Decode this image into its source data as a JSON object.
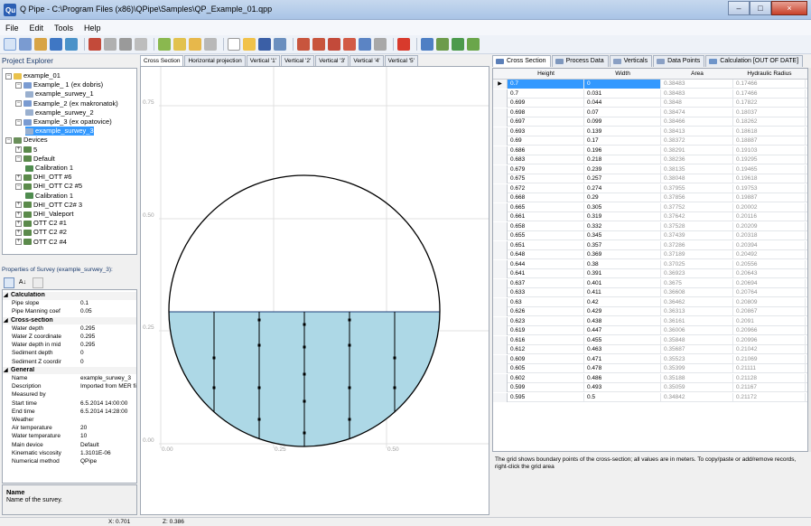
{
  "window": {
    "title": "Q Pipe - C:\\Program Files (x86)\\QPipe\\Samples\\QP_Example_01.qpp",
    "buttons": [
      "–",
      "□",
      "×"
    ]
  },
  "menu": [
    "File",
    "Edit",
    "Tools",
    "Help"
  ],
  "project_explorer": {
    "header": "Project Explorer",
    "items": [
      {
        "label": "example_01",
        "level": 0,
        "exp": "−",
        "icon": "folder-icon"
      },
      {
        "label": "Example_ 1 (ex dobris)",
        "level": 1,
        "exp": "−",
        "icon": "pipe-icon"
      },
      {
        "label": "example_surwey_1",
        "level": 2,
        "exp": "",
        "icon": "survey-icon"
      },
      {
        "label": "Example_2 (ex makronatok)",
        "level": 1,
        "exp": "−",
        "icon": "pipe-icon"
      },
      {
        "label": "example_surwey_2",
        "level": 2,
        "exp": "",
        "icon": "survey-icon"
      },
      {
        "label": "Example_3 (ex opatovice)",
        "level": 1,
        "exp": "−",
        "icon": "pipe-icon"
      },
      {
        "label": "example_surwey_3",
        "level": 2,
        "exp": "",
        "icon": "survey-icon",
        "selected": true
      },
      {
        "label": "Devices",
        "level": 0,
        "exp": "−",
        "icon": "devices-icon"
      },
      {
        "label": "5",
        "level": 1,
        "exp": "+",
        "icon": "device-icon"
      },
      {
        "label": "Default",
        "level": 1,
        "exp": "−",
        "icon": "device-icon"
      },
      {
        "label": "Calibration 1",
        "level": 2,
        "exp": "",
        "icon": "calibration-icon"
      },
      {
        "label": "DHI_OTT #6",
        "level": 1,
        "exp": "+",
        "icon": "device-icon"
      },
      {
        "label": "DHI_OTT C2 #5",
        "level": 1,
        "exp": "−",
        "icon": "device-icon"
      },
      {
        "label": "Calibration 1",
        "level": 2,
        "exp": "",
        "icon": "calibration-icon"
      },
      {
        "label": "DHI_OTT C2# 3",
        "level": 1,
        "exp": "+",
        "icon": "device-icon"
      },
      {
        "label": "DHI_Valeport",
        "level": 1,
        "exp": "+",
        "icon": "device-icon"
      },
      {
        "label": "OTT C2 #1",
        "level": 1,
        "exp": "+",
        "icon": "device-icon"
      },
      {
        "label": "OTT C2 #2",
        "level": 1,
        "exp": "+",
        "icon": "device-icon"
      },
      {
        "label": "OTT C2 #4",
        "level": 1,
        "exp": "+",
        "icon": "device-icon"
      }
    ]
  },
  "properties": {
    "header": "Properties of Survey (example_surwey_3):",
    "rows": [
      {
        "cat": true,
        "key": "Calculation"
      },
      {
        "key": "Pipe slope",
        "value": "0.1"
      },
      {
        "key": "Pipe Manning coef",
        "value": "0.05"
      },
      {
        "cat": true,
        "key": "Cross-section"
      },
      {
        "key": "Water depth",
        "value": "0.295"
      },
      {
        "key": "Water Z coordinate",
        "value": "0.295"
      },
      {
        "key": "Water depth in mid",
        "value": "0.295"
      },
      {
        "key": "Sediment depth",
        "value": "0"
      },
      {
        "key": "Sediment Z coordir",
        "value": "0"
      },
      {
        "cat": true,
        "key": "General"
      },
      {
        "key": "Name",
        "value": "example_surwey_3"
      },
      {
        "key": "Description",
        "value": "Imported from MER file"
      },
      {
        "key": "Measured by",
        "value": ""
      },
      {
        "key": "Start time",
        "value": "6.5.2014 14:00:00"
      },
      {
        "key": "End time",
        "value": "6.5.2014 14:28:00"
      },
      {
        "key": "Weather",
        "value": ""
      },
      {
        "key": "Air temperature",
        "value": "20"
      },
      {
        "key": "Water temperature",
        "value": "10"
      },
      {
        "key": "Main device",
        "value": "Default"
      },
      {
        "key": "Kinematic viscosity",
        "value": "1.3101E-06"
      },
      {
        "key": "Numerical method",
        "value": "QPipe"
      }
    ],
    "desc_title": "Name",
    "desc_text": "Name of the survey."
  },
  "center_tabs": [
    "Cross Section",
    "Horizontal projection",
    "Vertical '1'",
    "Vertical '2'",
    "Vertical '3'",
    "Vertical '4'",
    "Vertical '5'"
  ],
  "chart": {
    "y_ticks": [
      "0.75",
      "0.50",
      "0.25",
      "0.00"
    ],
    "x_ticks": [
      "0.00",
      "0.25",
      "0.50"
    ],
    "water_color": "#add8e6"
  },
  "right_tabs": [
    {
      "label": "Cross Section",
      "icon": "cross-section-icon",
      "active": true
    },
    {
      "label": "Process Data",
      "icon": "process-icon"
    },
    {
      "label": "Verticals",
      "icon": "verticals-icon"
    },
    {
      "label": "Data Points",
      "icon": "datapoints-icon"
    },
    {
      "label": "Calculation [OUT OF DATE]",
      "icon": "calculation-icon"
    }
  ],
  "grid": {
    "columns": [
      "Height",
      "Width",
      "Area",
      "Hydraulic Radius"
    ],
    "rows": [
      [
        "0.7",
        "0",
        "0.38483",
        "0.17466"
      ],
      [
        "0.7",
        "0.031",
        "0.38483",
        "0.17466"
      ],
      [
        "0.699",
        "0.044",
        "0.3848",
        "0.17822"
      ],
      [
        "0.698",
        "0.07",
        "0.38474",
        "0.18037"
      ],
      [
        "0.697",
        "0.099",
        "0.38466",
        "0.18262"
      ],
      [
        "0.693",
        "0.139",
        "0.38413",
        "0.18618"
      ],
      [
        "0.69",
        "0.17",
        "0.38372",
        "0.18887"
      ],
      [
        "0.686",
        "0.196",
        "0.38291",
        "0.19103"
      ],
      [
        "0.683",
        "0.218",
        "0.38236",
        "0.19295"
      ],
      [
        "0.679",
        "0.239",
        "0.38135",
        "0.19465"
      ],
      [
        "0.675",
        "0.257",
        "0.38048",
        "0.19618"
      ],
      [
        "0.672",
        "0.274",
        "0.37955",
        "0.19753"
      ],
      [
        "0.668",
        "0.29",
        "0.37856",
        "0.19887"
      ],
      [
        "0.665",
        "0.305",
        "0.37752",
        "0.20002"
      ],
      [
        "0.661",
        "0.319",
        "0.37642",
        "0.20116"
      ],
      [
        "0.658",
        "0.332",
        "0.37528",
        "0.20209"
      ],
      [
        "0.655",
        "0.345",
        "0.37439",
        "0.20318"
      ],
      [
        "0.651",
        "0.357",
        "0.37286",
        "0.20394"
      ],
      [
        "0.648",
        "0.369",
        "0.37189",
        "0.20492"
      ],
      [
        "0.644",
        "0.38",
        "0.37025",
        "0.20556"
      ],
      [
        "0.641",
        "0.391",
        "0.36923",
        "0.20643"
      ],
      [
        "0.637",
        "0.401",
        "0.3675",
        "0.20694"
      ],
      [
        "0.633",
        "0.411",
        "0.36608",
        "0.20764"
      ],
      [
        "0.63",
        "0.42",
        "0.36462",
        "0.20809"
      ],
      [
        "0.626",
        "0.429",
        "0.36313",
        "0.20867"
      ],
      [
        "0.623",
        "0.438",
        "0.36161",
        "0.2091"
      ],
      [
        "0.619",
        "0.447",
        "0.36006",
        "0.20966"
      ],
      [
        "0.616",
        "0.455",
        "0.35848",
        "0.20996"
      ],
      [
        "0.612",
        "0.463",
        "0.35687",
        "0.21042"
      ],
      [
        "0.609",
        "0.471",
        "0.35523",
        "0.21069"
      ],
      [
        "0.605",
        "0.478",
        "0.35399",
        "0.21111"
      ],
      [
        "0.602",
        "0.486",
        "0.35188",
        "0.21128"
      ],
      [
        "0.599",
        "0.493",
        "0.35059",
        "0.21167"
      ],
      [
        "0.595",
        "0.5",
        "0.34842",
        "0.21172"
      ]
    ],
    "note": "The grid shows boundary points of the cross-section; all values are in meters. To copy/paste or add/remove records, right-click the grid area"
  },
  "status": {
    "x": "X: 0.701",
    "z": "Z: 0.386"
  }
}
